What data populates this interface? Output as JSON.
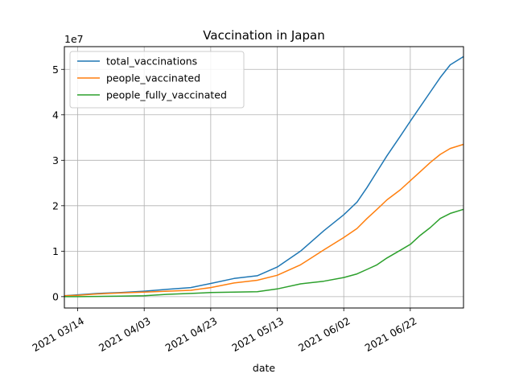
{
  "chart_data": {
    "type": "line",
    "title": "Vaccination in Japan",
    "xlabel": "date",
    "ylabel": "",
    "y_offset_label": "1e7",
    "y_scale_factor": 10000000,
    "xlim": [
      "2021-03-10",
      "2021-07-08"
    ],
    "ylim": [
      -2500000,
      55000000
    ],
    "x_ticks": [
      "2021-03-14",
      "2021-04-03",
      "2021-04-23",
      "2021-05-13",
      "2021-06-02",
      "2021-06-22"
    ],
    "x_tick_labels": [
      "2021 03/14",
      "2021 04/03",
      "2021 04/23",
      "2021 05/13",
      "2021 06/02",
      "2021 06/22"
    ],
    "y_ticks": [
      0,
      10000000,
      20000000,
      30000000,
      40000000,
      50000000
    ],
    "y_tick_labels": [
      "0",
      "1",
      "2",
      "3",
      "4",
      "5"
    ],
    "grid": true,
    "legend_position": "top-left",
    "x": [
      "2021-03-10",
      "2021-03-14",
      "2021-03-20",
      "2021-03-27",
      "2021-04-03",
      "2021-04-10",
      "2021-04-17",
      "2021-04-23",
      "2021-04-30",
      "2021-05-07",
      "2021-05-13",
      "2021-05-20",
      "2021-05-27",
      "2021-06-02",
      "2021-06-06",
      "2021-06-09",
      "2021-06-12",
      "2021-06-15",
      "2021-06-19",
      "2021-06-22",
      "2021-06-25",
      "2021-06-28",
      "2021-07-01",
      "2021-07-04",
      "2021-07-08"
    ],
    "series": [
      {
        "name": "total_vaccinations",
        "color": "#1f77b4",
        "values": [
          200000,
          400000,
          700000,
          900000,
          1200000,
          1600000,
          2000000,
          2900000,
          4000000,
          4600000,
          6500000,
          10000000,
          14500000,
          18000000,
          20800000,
          24000000,
          27500000,
          31000000,
          35300000,
          38600000,
          41800000,
          45000000,
          48200000,
          51000000,
          52800000
        ]
      },
      {
        "name": "people_vaccinated",
        "color": "#ff7f0e",
        "values": [
          200000,
          300000,
          600000,
          800000,
          1000000,
          1200000,
          1400000,
          2000000,
          3000000,
          3600000,
          4700000,
          7000000,
          10300000,
          13000000,
          15000000,
          17200000,
          19200000,
          21300000,
          23500000,
          25500000,
          27500000,
          29500000,
          31300000,
          32600000,
          33500000
        ]
      },
      {
        "name": "people_fully_vaccinated",
        "color": "#2ca02c",
        "values": [
          0,
          0,
          50000,
          100000,
          200000,
          500000,
          700000,
          900000,
          1000000,
          1100000,
          1700000,
          2800000,
          3400000,
          4200000,
          5000000,
          6000000,
          7000000,
          8500000,
          10200000,
          11500000,
          13500000,
          15200000,
          17200000,
          18300000,
          19200000
        ]
      }
    ]
  }
}
